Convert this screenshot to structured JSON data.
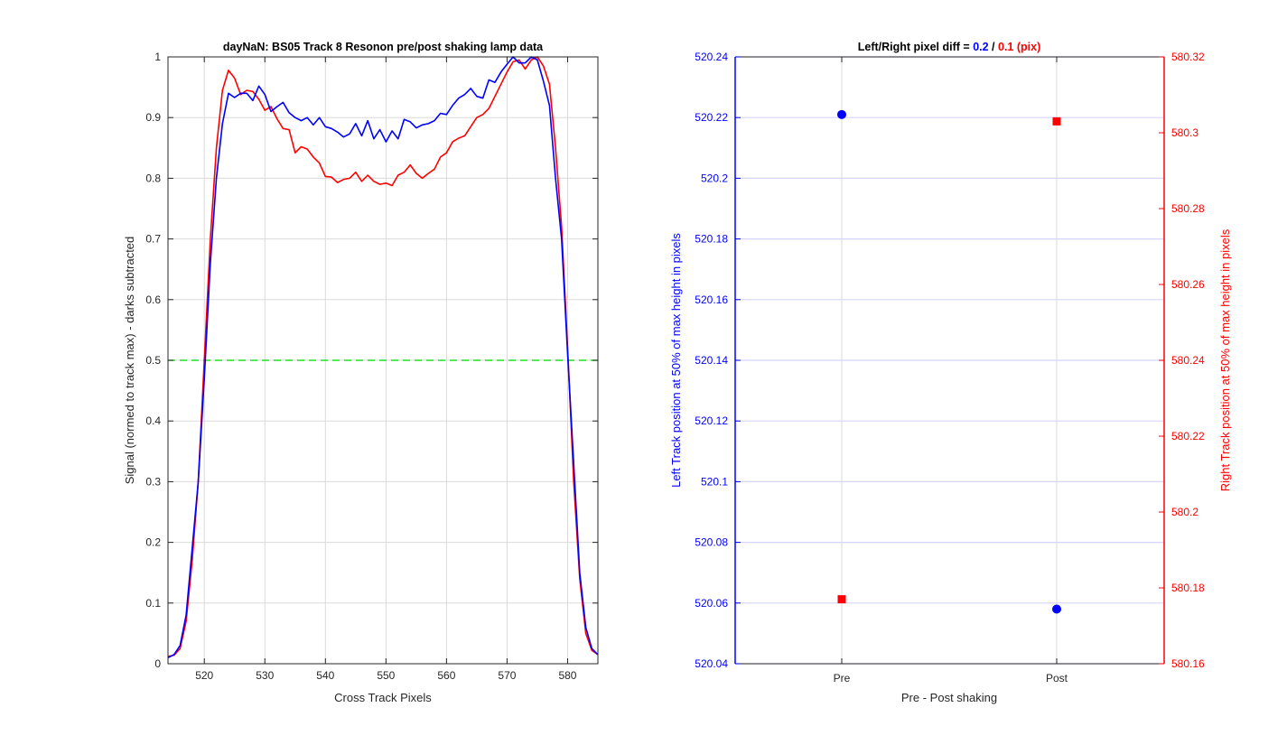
{
  "chart_data": [
    {
      "type": "line",
      "title": "dayNaN: BS05  Track 8 Resonon pre/post shaking lamp data",
      "xlabel": "Cross Track Pixels",
      "ylabel": "Signal (normed to track max) - darks subtracted",
      "xlim": [
        514,
        585
      ],
      "ylim": [
        0,
        1
      ],
      "xticks": [
        520,
        530,
        540,
        550,
        560,
        570,
        580
      ],
      "yticks": [
        0,
        0.1,
        0.2,
        0.3,
        0.4,
        0.5,
        0.6,
        0.7,
        0.8,
        0.9,
        1
      ],
      "ytick_labels": [
        "0",
        "0.1",
        "0.2",
        "0.3",
        "0.4",
        "0.5",
        "0.6",
        "0.7",
        "0.8",
        "0.9",
        "1"
      ],
      "grid": true,
      "colors": {
        "pre": "#0000ff",
        "post": "#ff0000",
        "threshold": "#22dd22"
      },
      "threshold": 0.5,
      "series": [
        {
          "name": "pre",
          "x": [
            514,
            515,
            516,
            517,
            518,
            519,
            520,
            521,
            522,
            523,
            524,
            525,
            526,
            527,
            528,
            529,
            530,
            531,
            532,
            533,
            534,
            535,
            536,
            537,
            538,
            539,
            540,
            541,
            542,
            543,
            544,
            545,
            546,
            547,
            548,
            549,
            550,
            551,
            552,
            553,
            554,
            555,
            556,
            557,
            558,
            559,
            560,
            561,
            562,
            563,
            564,
            565,
            566,
            567,
            568,
            569,
            570,
            571,
            572,
            573,
            574,
            575,
            576,
            577,
            578,
            579,
            580,
            581,
            582,
            583,
            584,
            585
          ],
          "values": [
            0.01,
            0.015,
            0.03,
            0.08,
            0.19,
            0.3,
            0.47,
            0.66,
            0.8,
            0.89,
            0.94,
            0.933,
            0.94,
            0.94,
            0.928,
            0.952,
            0.938,
            0.91,
            0.918,
            0.925,
            0.908,
            0.9,
            0.895,
            0.9,
            0.888,
            0.9,
            0.885,
            0.882,
            0.876,
            0.868,
            0.873,
            0.89,
            0.87,
            0.895,
            0.865,
            0.88,
            0.86,
            0.878,
            0.865,
            0.897,
            0.893,
            0.883,
            0.888,
            0.89,
            0.895,
            0.907,
            0.905,
            0.92,
            0.932,
            0.938,
            0.948,
            0.935,
            0.932,
            0.962,
            0.958,
            0.975,
            0.988,
            1.0,
            0.99,
            0.99,
            1.0,
            0.995,
            0.96,
            0.92,
            0.8,
            0.7,
            0.51,
            0.33,
            0.15,
            0.06,
            0.025,
            0.015
          ]
        },
        {
          "name": "post",
          "x": [
            514,
            515,
            516,
            517,
            518,
            519,
            520,
            521,
            522,
            523,
            524,
            525,
            526,
            527,
            528,
            529,
            530,
            531,
            532,
            533,
            534,
            535,
            536,
            537,
            538,
            539,
            540,
            541,
            542,
            543,
            544,
            545,
            546,
            547,
            548,
            549,
            550,
            551,
            552,
            553,
            554,
            555,
            556,
            557,
            558,
            559,
            560,
            561,
            562,
            563,
            564,
            565,
            566,
            567,
            568,
            569,
            570,
            571,
            572,
            573,
            574,
            575,
            576,
            577,
            578,
            579,
            580,
            581,
            582,
            583,
            584,
            585
          ],
          "values": [
            0.012,
            0.014,
            0.025,
            0.07,
            0.17,
            0.3,
            0.5,
            0.7,
            0.85,
            0.945,
            0.978,
            0.965,
            0.938,
            0.945,
            0.943,
            0.93,
            0.912,
            0.918,
            0.898,
            0.882,
            0.88,
            0.842,
            0.852,
            0.848,
            0.835,
            0.825,
            0.803,
            0.802,
            0.793,
            0.798,
            0.8,
            0.81,
            0.795,
            0.805,
            0.795,
            0.79,
            0.792,
            0.788,
            0.805,
            0.81,
            0.822,
            0.808,
            0.8,
            0.808,
            0.815,
            0.835,
            0.842,
            0.86,
            0.866,
            0.87,
            0.885,
            0.9,
            0.905,
            0.915,
            0.935,
            0.955,
            0.975,
            0.992,
            0.995,
            0.98,
            0.995,
            1.0,
            0.985,
            0.955,
            0.85,
            0.72,
            0.52,
            0.3,
            0.14,
            0.05,
            0.022,
            0.015
          ]
        }
      ]
    },
    {
      "type": "scatter",
      "title_parts": [
        "Left/Right pixel diff = ",
        "0.2",
        " / ",
        "0.1",
        " (pix)"
      ],
      "xlabel": "Pre - Post shaking",
      "ylabel_left": "Left Track position at 50% of max height in pixels",
      "ylabel_right": "Right Track position at 50% of max height in pixels",
      "categories": [
        "Pre",
        "Post"
      ],
      "ylim_left": [
        520.04,
        520.24
      ],
      "yticks_left": [
        520.04,
        520.06,
        520.08,
        520.1,
        520.12,
        520.14,
        520.16,
        520.18,
        520.2,
        520.22,
        520.24
      ],
      "ytick_labels_left": [
        "520.04",
        "520.06",
        "520.08",
        "520.1",
        "520.12",
        "520.14",
        "520.16",
        "520.18",
        "520.2",
        "520.22",
        "520.24"
      ],
      "ylim_right": [
        580.16,
        580.32
      ],
      "yticks_right": [
        580.16,
        580.18,
        580.2,
        580.22,
        580.24,
        580.26,
        580.28,
        580.3,
        580.32
      ],
      "ytick_labels_right": [
        "580.16",
        "580.18",
        "580.2",
        "580.22",
        "580.24",
        "580.26",
        "580.28",
        "580.3",
        "580.32"
      ],
      "grid": true,
      "colors": {
        "left": "#0000ff",
        "right": "#ff0000"
      },
      "series": [
        {
          "name": "left",
          "axis": "left",
          "marker": "circle",
          "values": [
            520.221,
            520.058
          ]
        },
        {
          "name": "right",
          "axis": "right",
          "marker": "square",
          "values": [
            580.177,
            580.303
          ]
        }
      ]
    }
  ]
}
